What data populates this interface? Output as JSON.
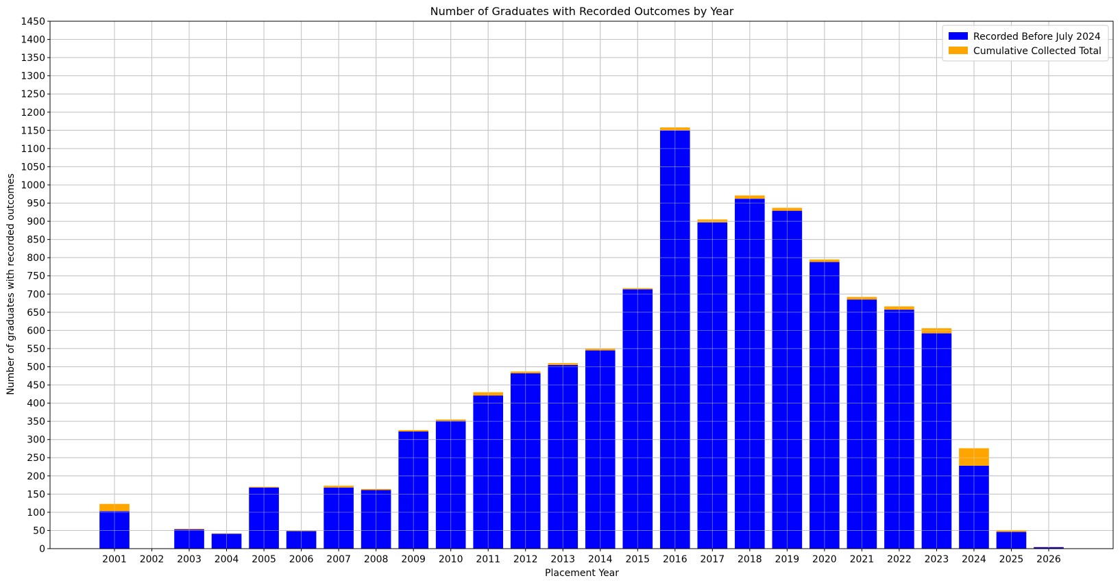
{
  "chart_data": {
    "type": "bar",
    "title": "Number of Graduates with Recorded Outcomes by Year",
    "xlabel": "Placement Year",
    "ylabel": "Number of graduates with recorded outcomes",
    "categories": [
      "2001",
      "2002",
      "2003",
      "2004",
      "2005",
      "2006",
      "2007",
      "2008",
      "2009",
      "2010",
      "2011",
      "2012",
      "2013",
      "2014",
      "2015",
      "2016",
      "2017",
      "2018",
      "2019",
      "2020",
      "2021",
      "2022",
      "2023",
      "2024",
      "2025",
      "2026"
    ],
    "ylim": [
      0,
      1450
    ],
    "ytick_step": 50,
    "grid": true,
    "legend_position": "top-right",
    "series": [
      {
        "name": "Recorded Before July 2024",
        "color": "#0000ff",
        "values": [
          103,
          0,
          53,
          41,
          168,
          48,
          168,
          161,
          322,
          351,
          421,
          482,
          505,
          545,
          713,
          1150,
          897,
          962,
          929,
          788,
          685,
          657,
          592,
          228,
          46,
          4
        ]
      },
      {
        "name": "Cumulative Collected Total",
        "color": "#ffa500",
        "values": [
          20,
          0,
          2,
          1,
          2,
          1,
          5,
          3,
          4,
          4,
          9,
          5,
          5,
          5,
          3,
          8,
          8,
          9,
          8,
          7,
          7,
          9,
          14,
          48,
          5,
          1
        ]
      }
    ]
  }
}
